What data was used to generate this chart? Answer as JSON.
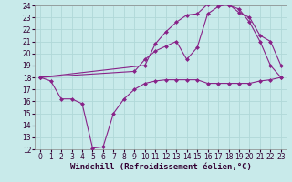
{
  "background_color": "#c8eaea",
  "grid_color": "#b0d8d8",
  "line_color": "#882288",
  "marker": "D",
  "marker_size": 2.5,
  "xlim": [
    -0.5,
    23.5
  ],
  "ylim": [
    12,
    24
  ],
  "xticks": [
    0,
    1,
    2,
    3,
    4,
    5,
    6,
    7,
    8,
    9,
    10,
    11,
    12,
    13,
    14,
    15,
    16,
    17,
    18,
    19,
    20,
    21,
    22,
    23
  ],
  "yticks": [
    12,
    13,
    14,
    15,
    16,
    17,
    18,
    19,
    20,
    21,
    22,
    23,
    24
  ],
  "xlabel": "Windchill (Refroidissement éolien,°C)",
  "xlabel_fontsize": 6.5,
  "tick_fontsize": 5.5,
  "curve1_x": [
    0,
    1,
    2,
    3,
    4,
    5,
    6,
    7,
    8,
    9,
    10,
    11,
    12,
    13,
    14,
    15,
    16,
    17,
    18,
    19,
    20,
    21,
    22,
    23
  ],
  "curve1_y": [
    18,
    17.7,
    16.2,
    16.2,
    15.8,
    12.1,
    12.2,
    15.0,
    16.2,
    17.0,
    17.5,
    17.7,
    17.8,
    17.8,
    17.8,
    17.8,
    17.5,
    17.5,
    17.5,
    17.5,
    17.5,
    17.7,
    17.8,
    18.0
  ],
  "curve2_x": [
    0,
    10,
    11,
    12,
    13,
    14,
    15,
    16,
    17,
    18,
    19,
    20,
    21,
    22,
    23
  ],
  "curve2_y": [
    18,
    19.0,
    20.8,
    21.8,
    22.6,
    23.2,
    23.3,
    24.1,
    24.1,
    24.0,
    23.7,
    22.6,
    21.0,
    19.0,
    18.0
  ],
  "curve3_x": [
    0,
    9,
    10,
    11,
    12,
    13,
    14,
    15,
    16,
    17,
    18,
    19,
    20,
    21,
    22,
    23
  ],
  "curve3_y": [
    18,
    18.5,
    19.5,
    20.2,
    20.6,
    21.0,
    19.5,
    20.5,
    23.3,
    23.9,
    24.1,
    23.4,
    23.0,
    21.5,
    21.0,
    19.0
  ]
}
